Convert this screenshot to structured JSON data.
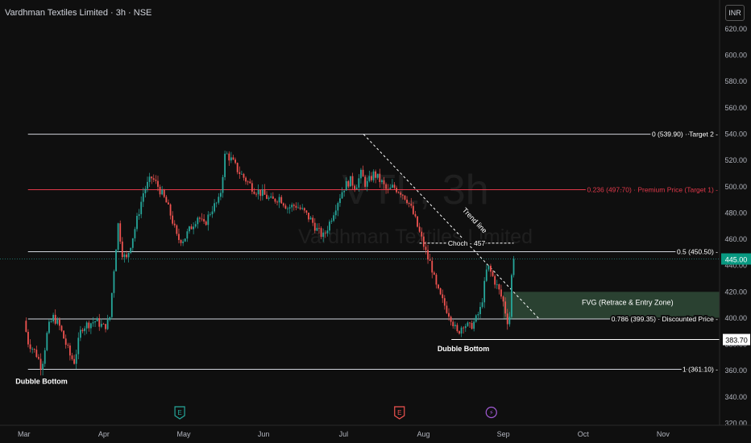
{
  "header": {
    "title": "Vardhman Textiles Limited · 3h · NSE",
    "currency": "INR"
  },
  "watermark": {
    "symbol": "VTL, 3h",
    "name": "Vardhman Textiles Limited"
  },
  "colors": {
    "background": "#0f0f0f",
    "up": "#26a69a",
    "down": "#ef5350",
    "level_line": "#d1d4dc",
    "premium_line": "#e0384a",
    "fvg_zone": "#2f4a37",
    "last_price_badge": "#089981"
  },
  "chart_data": {
    "type": "candlestick",
    "title": "Vardhman Textiles Limited · 3h · NSE",
    "ylim": [
      305,
      642
    ],
    "y_ticks": [
      320,
      340,
      360,
      380,
      400,
      420,
      440,
      460,
      480,
      500,
      520,
      540,
      560,
      580,
      600,
      620
    ],
    "y_tick_labels": [
      "320.00",
      "340.00",
      "360.00",
      "380.00",
      "400.00",
      "420.00",
      "440.00",
      "460.00",
      "480.00",
      "500.00",
      "520.00",
      "540.00",
      "560.00",
      "580.00",
      "600.00",
      "620.00"
    ],
    "x_tick_labels": [
      "Mar",
      "Apr",
      "May",
      "Jun",
      "Jul",
      "Aug",
      "Sep",
      "Oct",
      "Nov"
    ],
    "x_range_months": [
      -0.3,
      9.1
    ],
    "grid": false,
    "price_path": [
      [
        0.0,
        398
      ],
      [
        0.05,
        382
      ],
      [
        0.12,
        376
      ],
      [
        0.17,
        371
      ],
      [
        0.22,
        362
      ],
      [
        0.3,
        392
      ],
      [
        0.37,
        401
      ],
      [
        0.45,
        393
      ],
      [
        0.52,
        381
      ],
      [
        0.58,
        371
      ],
      [
        0.63,
        367
      ],
      [
        0.72,
        393
      ],
      [
        0.82,
        396
      ],
      [
        0.9,
        398
      ],
      [
        1.0,
        393
      ],
      [
        1.07,
        398
      ],
      [
        1.13,
        440
      ],
      [
        1.18,
        472
      ],
      [
        1.23,
        450
      ],
      [
        1.28,
        444
      ],
      [
        1.38,
        466
      ],
      [
        1.5,
        497
      ],
      [
        1.6,
        507
      ],
      [
        1.68,
        500
      ],
      [
        1.78,
        488
      ],
      [
        1.85,
        476
      ],
      [
        1.92,
        460
      ],
      [
        2.0,
        460
      ],
      [
        2.1,
        470
      ],
      [
        2.18,
        478
      ],
      [
        2.25,
        470
      ],
      [
        2.35,
        483
      ],
      [
        2.45,
        490
      ],
      [
        2.52,
        526
      ],
      [
        2.6,
        520
      ],
      [
        2.68,
        512
      ],
      [
        2.78,
        505
      ],
      [
        2.88,
        498
      ],
      [
        3.0,
        494
      ],
      [
        3.1,
        489
      ],
      [
        3.2,
        492
      ],
      [
        3.3,
        484
      ],
      [
        3.4,
        486
      ],
      [
        3.5,
        481
      ],
      [
        3.6,
        474
      ],
      [
        3.68,
        466
      ],
      [
        3.75,
        462
      ],
      [
        3.82,
        472
      ],
      [
        3.92,
        488
      ],
      [
        4.0,
        499
      ],
      [
        4.08,
        505
      ],
      [
        4.15,
        500
      ],
      [
        4.22,
        510
      ],
      [
        4.28,
        501
      ],
      [
        4.38,
        510
      ],
      [
        4.48,
        503
      ],
      [
        4.55,
        496
      ],
      [
        4.62,
        500
      ],
      [
        4.72,
        496
      ],
      [
        4.8,
        490
      ],
      [
        4.88,
        478
      ],
      [
        4.95,
        465
      ],
      [
        5.0,
        456
      ],
      [
        5.05,
        446
      ],
      [
        5.1,
        440
      ],
      [
        5.15,
        425
      ],
      [
        5.22,
        415
      ],
      [
        5.28,
        408
      ],
      [
        5.35,
        400
      ],
      [
        5.42,
        388
      ],
      [
        5.5,
        396
      ],
      [
        5.58,
        393
      ],
      [
        5.65,
        398
      ],
      [
        5.72,
        408
      ],
      [
        5.8,
        440
      ],
      [
        5.88,
        430
      ],
      [
        5.95,
        420
      ],
      [
        6.0,
        412
      ],
      [
        6.05,
        398
      ],
      [
        6.08,
        402
      ],
      [
        6.1,
        430
      ],
      [
        6.13,
        445
      ]
    ],
    "last_price": 445.0,
    "last_price_label": "445.00",
    "levels": [
      {
        "price": 539.9,
        "label": "0 (539.90) · Target 2 -",
        "style": "white",
        "from_month": 0.05
      },
      {
        "price": 497.7,
        "label": "0.236 (497.70) · Premium Price (Target 1) -",
        "style": "red",
        "from_month": 0.05
      },
      {
        "price": 450.5,
        "label": "0.5 (450.50) -",
        "style": "white",
        "from_month": 0.05
      },
      {
        "price": 399.35,
        "label": "0.786 (399.35) · Discounted Price -",
        "style": "white",
        "from_month": 0.05
      },
      {
        "price": 361.1,
        "label": "1 (361.10) -",
        "style": "white",
        "from_month": 0.05
      }
    ],
    "support_line": {
      "price": 383.7,
      "label": "383.70",
      "from_month": 5.35
    },
    "fvg": {
      "price_top": 420.0,
      "price_bottom": 399.35,
      "from_month": 6.0,
      "label": "FVG (Retrace & Entry Zone)"
    },
    "choch": {
      "price": 457.0,
      "from_month": 4.95,
      "to_month": 6.13,
      "label": "Choch - 457"
    },
    "trend_line": {
      "from": [
        4.25,
        539.9
      ],
      "to": [
        6.45,
        399.35
      ],
      "label": "Trend line"
    },
    "annotations": [
      {
        "text": "Dubble Bottom",
        "month": 0.22,
        "price": 350
      },
      {
        "text": "Dubble Bottom",
        "month": 5.5,
        "price": 375
      }
    ],
    "event_markers": [
      {
        "symbol": "E",
        "month": 1.95,
        "color": "#26a69a"
      },
      {
        "symbol": "E",
        "month": 4.7,
        "color": "#ef5350"
      },
      {
        "symbol": "⚡",
        "month": 5.85,
        "color": "#a35bd6"
      }
    ]
  }
}
